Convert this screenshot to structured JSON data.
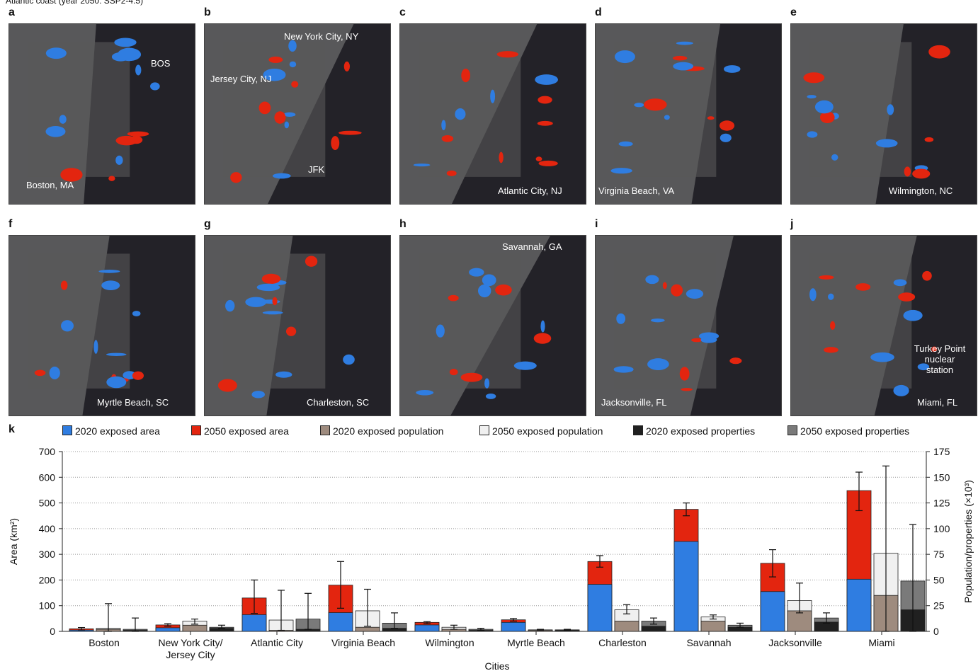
{
  "figure": {
    "title": "Atlantic coast (year 2050: SSP2-4.5)"
  },
  "maps": [
    {
      "letter": "a",
      "labels": {
        "city": "Boston, MA",
        "extra1": "BOS"
      }
    },
    {
      "letter": "b",
      "labels": {
        "city": "New York City, NY",
        "extra1": "Jersey City, NJ",
        "extra2": "JFK"
      }
    },
    {
      "letter": "c",
      "labels": {
        "city": "Atlantic City, NJ"
      }
    },
    {
      "letter": "d",
      "labels": {
        "city": "Virginia Beach, VA"
      }
    },
    {
      "letter": "e",
      "labels": {
        "city": "Wilmington, NC"
      }
    },
    {
      "letter": "f",
      "labels": {
        "city": "Myrtle Beach, SC"
      }
    },
    {
      "letter": "g",
      "labels": {
        "city": "Charleston, SC"
      }
    },
    {
      "letter": "h",
      "labels": {
        "city": "Savannah, GA"
      }
    },
    {
      "letter": "i",
      "labels": {
        "city": "Jacksonville, FL"
      }
    },
    {
      "letter": "j",
      "labels": {
        "city": "Miami, FL",
        "extra1": "Turkey Point nuclear station"
      }
    }
  ],
  "colors": {
    "map_background": "#232228",
    "exposed_2020": "#2f7de1",
    "exposed_2050": "#e3250f",
    "pop_2020": "#9e8b7e",
    "pop_2050": "#f0f0f0",
    "prop_2020": "#202020",
    "prop_2050": "#7a7a7a"
  },
  "chart_data": {
    "letter": "k",
    "type": "bar",
    "categories": [
      "Boston",
      "New York City/\nJersey City",
      "Atlantic City",
      "Virginia Beach",
      "Wilmington",
      "Myrtle Beach",
      "Charleston",
      "Savannah",
      "Jacksonville",
      "Miami"
    ],
    "xlabel": "Cities",
    "ylabel_left": "Area (km²)",
    "ylabel_right": "Population/properties (×10³)",
    "ylim_left": [
      0,
      700
    ],
    "ylim_right": [
      0,
      175
    ],
    "yticks_left": [
      0,
      100,
      200,
      300,
      400,
      500,
      600,
      700
    ],
    "yticks_right": [
      0,
      25,
      50,
      75,
      100,
      125,
      150,
      175
    ],
    "grid": "horizontal dotted",
    "legend": [
      "2020 exposed area",
      "2050 exposed area",
      "2020 exposed population",
      "2050 exposed population",
      "2020 exposed properties",
      "2050 exposed properties"
    ],
    "area_2020": [
      5,
      14,
      65,
      73,
      25,
      35,
      183,
      350,
      155,
      203
    ],
    "area_2050": [
      10,
      25,
      130,
      180,
      35,
      45,
      272,
      475,
      265,
      548
    ],
    "area_2050_err": [
      [
        5,
        15
      ],
      [
        20,
        30
      ],
      [
        70,
        200
      ],
      [
        90,
        272
      ],
      [
        30,
        38
      ],
      [
        40,
        50
      ],
      [
        250,
        295
      ],
      [
        450,
        500
      ],
      [
        212,
        318
      ],
      [
        470,
        620
      ]
    ],
    "population_2020": [
      2,
      6,
      1,
      4,
      2,
      1,
      10,
      10,
      20,
      35
    ],
    "population_2050": [
      3,
      10,
      11,
      20,
      4,
      1.5,
      21,
      14,
      30,
      76
    ],
    "population_2050_err": [
      [
        0,
        27
      ],
      [
        7,
        12
      ],
      [
        1,
        40
      ],
      [
        5,
        41
      ],
      [
        2,
        6
      ],
      [
        1,
        2
      ],
      [
        17,
        26
      ],
      [
        12,
        16
      ],
      [
        18,
        47
      ],
      [
        0,
        161
      ]
    ],
    "properties_2020": [
      1,
      3,
      2,
      3,
      1,
      1,
      5,
      4,
      9,
      21
    ],
    "properties_2050": [
      2,
      4,
      12,
      8,
      2,
      1.5,
      10,
      6,
      13,
      49
    ],
    "properties_2050_err": [
      [
        0,
        13
      ],
      [
        3,
        6
      ],
      [
        2,
        37
      ],
      [
        3,
        18
      ],
      [
        1,
        3
      ],
      [
        1,
        2
      ],
      [
        7,
        13
      ],
      [
        4,
        8
      ],
      [
        8,
        18
      ],
      [
        0,
        104
      ]
    ]
  }
}
